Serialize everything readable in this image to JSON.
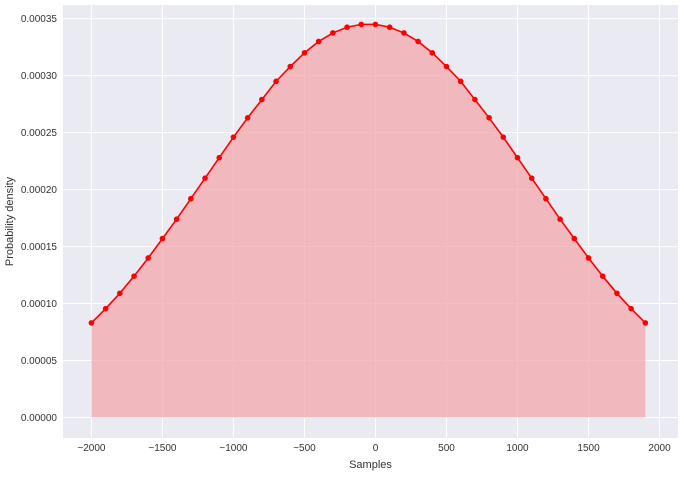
{
  "chart_data": {
    "type": "area",
    "title": "",
    "xlabel": "Samples",
    "ylabel": "Probability density",
    "xlim": [
      -2200,
      2130
    ],
    "ylim": [
      -1.8e-05,
      0.000362
    ],
    "grid": true,
    "legend": "none",
    "xticks": [
      -2000,
      -1500,
      -1000,
      -500,
      0,
      500,
      1000,
      1500,
      2000
    ],
    "xtick_labels": [
      "−2000",
      "−1500",
      "−1000",
      "−500",
      "0",
      "500",
      "1000",
      "1500",
      "2000"
    ],
    "yticks": [
      0,
      5e-05,
      0.0001,
      0.00015,
      0.0002,
      0.00025,
      0.0003,
      0.00035
    ],
    "ytick_labels": [
      "0.00000",
      "0.00005",
      "0.00010",
      "0.00015",
      "0.00020",
      "0.00025",
      "0.00030",
      "0.00035"
    ],
    "series": [
      {
        "x": [
          -2000,
          -1900,
          -1800,
          -1700,
          -1600,
          -1500,
          -1400,
          -1300,
          -1200,
          -1100,
          -1000,
          -900,
          -800,
          -700,
          -600,
          -500,
          -400,
          -300,
          -200,
          -100,
          0,
          100,
          200,
          300,
          400,
          500,
          600,
          700,
          800,
          900,
          1000,
          1100,
          1200,
          1300,
          1400,
          1500,
          1600,
          1700,
          1800,
          1900
        ],
        "y": [
          8.3e-05,
          9.55e-05,
          0.000109,
          0.000124,
          0.00014,
          0.000157,
          0.000174,
          0.000192,
          0.00021,
          0.000228,
          0.000246,
          0.000263,
          0.000279,
          0.000295,
          0.000308,
          0.00032,
          0.00033,
          0.0003375,
          0.0003425,
          0.000345,
          0.000345,
          0.0003425,
          0.0003375,
          0.00033,
          0.00032,
          0.000308,
          0.000295,
          0.000279,
          0.000263,
          0.000246,
          0.000228,
          0.00021,
          0.000192,
          0.000174,
          0.000157,
          0.00014,
          0.000124,
          0.000109,
          9.55e-05,
          8.3e-05
        ]
      }
    ],
    "colors": {
      "line": "#ff0000",
      "fill": "#f4a3a8",
      "plot_background": "#eaeaf2",
      "grid": "#ffffff"
    }
  }
}
